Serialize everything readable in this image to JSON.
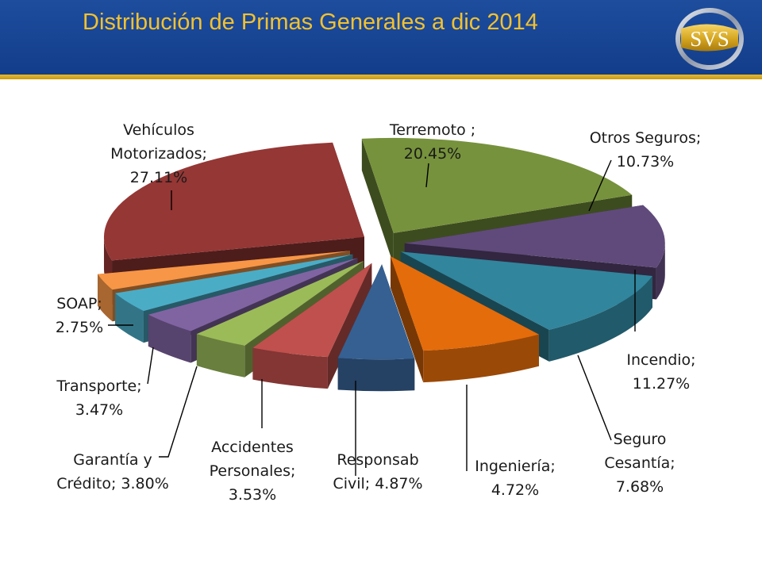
{
  "slide": {
    "title": "Distribución de Primas Generales a dic 2014"
  },
  "logo": {
    "text": "SVS",
    "icon": "svs-logo-icon",
    "colors": {
      "ring": "#9aa3b2",
      "gold": "#d4a520"
    }
  },
  "colors": {
    "header": "#173f8f",
    "accent_rule": "#d9a823",
    "title_text": "#f2c12e"
  },
  "chart_data": {
    "type": "pie",
    "style": "3d-exploded",
    "title": "",
    "legend": "none",
    "categories": [
      "Terremoto",
      "Otros Seguros",
      "Incendio",
      "Seguro Cesantía",
      "Ingeniería",
      "Responsab Civil",
      "Accidentes Personales",
      "Garantía y Crédito",
      "Transporte",
      "SOAP",
      "Vehículos Motorizados"
    ],
    "values": [
      20.45,
      10.73,
      11.27,
      7.68,
      4.72,
      4.87,
      3.53,
      3.8,
      3.47,
      2.75,
      27.11
    ],
    "unit": "%",
    "colors": [
      "#76923c",
      "#604a7b",
      "#31859c",
      "#e46c0a",
      "#366092",
      "#c0504d",
      "#9bbb59",
      "#8064a2",
      "#4bacc6",
      "#f79646",
      "#953735"
    ],
    "data_labels": [
      [
        "Terremoto ;",
        "20.45%"
      ],
      [
        "Otros Seguros;",
        "10.73%"
      ],
      [
        "Incendio;",
        "11.27%"
      ],
      [
        "Seguro",
        "Cesantía;",
        "7.68%"
      ],
      [
        "Ingeniería;",
        "4.72%"
      ],
      [
        "Responsab",
        "Civil; 4.87%"
      ],
      [
        "Accidentes",
        "Personales;",
        "3.53%"
      ],
      [
        "Garantía y",
        "Crédito; 3.80%"
      ],
      [
        "Transporte;",
        "3.47%"
      ],
      [
        "SOAP;",
        "2.75%"
      ],
      [
        "Vehículos",
        "Motorizados;",
        "27.11%"
      ]
    ]
  }
}
